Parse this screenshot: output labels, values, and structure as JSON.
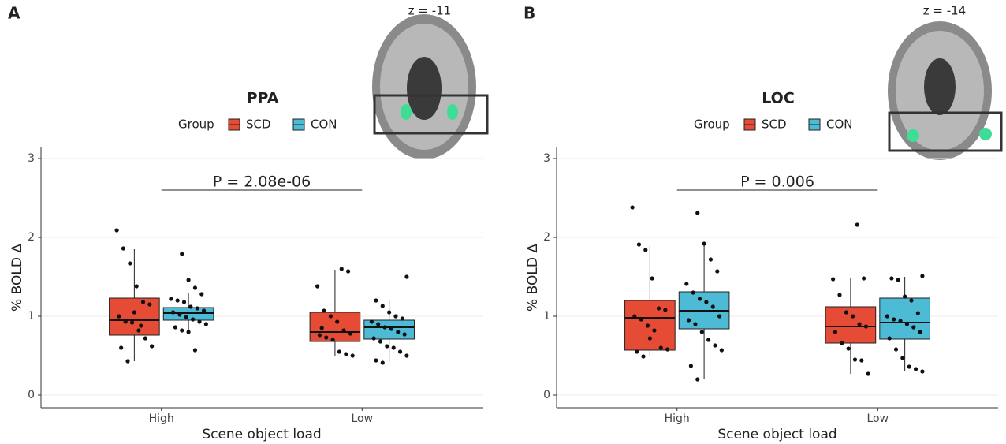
{
  "chart_data": [
    {
      "type": "box",
      "panel_label": "A",
      "title": "PPA",
      "legend_title": "Group",
      "legend_position": "top",
      "xlabel": "Scene object load",
      "ylabel": "% BOLD Δ",
      "slice_label": "z = -11",
      "annotation": "P = 2.08e-06",
      "categories": [
        "High",
        "Low"
      ],
      "ylim": [
        -0.16,
        3.14
      ],
      "yticks": [
        0,
        1,
        2,
        3
      ],
      "grid": true,
      "series": [
        {
          "name": "SCD",
          "color": "#e64b35",
          "boxes": [
            {
              "whislo": 0.43,
              "q1": 0.76,
              "med": 0.95,
              "q3": 1.23,
              "whishi": 1.85
            },
            {
              "whislo": 0.5,
              "q1": 0.68,
              "med": 0.8,
              "q3": 1.05,
              "whishi": 1.59
            }
          ],
          "points": [
            [
              2.09,
              1.86,
              1.67,
              1.38,
              1.18,
              1.15,
              1.0,
              0.93,
              0.92,
              0.82,
              0.72,
              0.62,
              0.6,
              0.43,
              1.05,
              0.88
            ],
            [
              1.6,
              1.57,
              1.38,
              1.07,
              1.0,
              0.93,
              0.82,
              0.78,
              0.76,
              0.73,
              0.7,
              0.55,
              0.52,
              0.5,
              0.85
            ]
          ]
        },
        {
          "name": "CON",
          "color": "#4dbbd5",
          "boxes": [
            {
              "whislo": 0.8,
              "q1": 0.95,
              "med": 1.04,
              "q3": 1.11,
              "whishi": 1.3
            },
            {
              "whislo": 0.42,
              "q1": 0.71,
              "med": 0.86,
              "q3": 0.95,
              "whishi": 1.2
            }
          ],
          "points": [
            [
              1.79,
              1.46,
              1.36,
              1.28,
              1.22,
              1.2,
              1.18,
              1.12,
              1.1,
              1.07,
              1.05,
              1.02,
              0.99,
              0.96,
              0.93,
              0.9,
              0.86,
              0.82,
              0.8,
              0.57
            ],
            [
              1.5,
              1.2,
              1.13,
              1.05,
              1.0,
              0.97,
              0.93,
              0.9,
              0.86,
              0.84,
              0.8,
              0.77,
              0.72,
              0.68,
              0.62,
              0.6,
              0.55,
              0.5,
              0.44,
              0.41
            ]
          ]
        }
      ]
    },
    {
      "type": "box",
      "panel_label": "B",
      "title": "LOC",
      "legend_title": "Group",
      "legend_position": "top",
      "xlabel": "Scene object load",
      "ylabel": "% BOLD Δ",
      "slice_label": "z = -14",
      "annotation": "P = 0.006",
      "categories": [
        "High",
        "Low"
      ],
      "ylim": [
        -0.16,
        3.14
      ],
      "yticks": [
        0,
        1,
        2,
        3
      ],
      "grid": true,
      "series": [
        {
          "name": "SCD",
          "color": "#e64b35",
          "boxes": [
            {
              "whislo": 0.49,
              "q1": 0.57,
              "med": 0.98,
              "q3": 1.2,
              "whishi": 1.89
            },
            {
              "whislo": 0.27,
              "q1": 0.66,
              "med": 0.87,
              "q3": 1.12,
              "whishi": 1.48
            }
          ],
          "points": [
            [
              2.38,
              1.91,
              1.84,
              1.48,
              1.1,
              1.08,
              1.0,
              0.96,
              0.88,
              0.82,
              0.6,
              0.58,
              0.55,
              0.49,
              0.72
            ],
            [
              2.16,
              1.48,
              1.47,
              1.27,
              1.05,
              1.0,
              0.9,
              0.87,
              0.8,
              0.66,
              0.59,
              0.45,
              0.44,
              0.27
            ]
          ]
        },
        {
          "name": "CON",
          "color": "#4dbbd5",
          "boxes": [
            {
              "whislo": 0.2,
              "q1": 0.84,
              "med": 1.07,
              "q3": 1.31,
              "whishi": 1.92
            },
            {
              "whislo": 0.3,
              "q1": 0.71,
              "med": 0.92,
              "q3": 1.23,
              "whishi": 1.5
            }
          ],
          "points": [
            [
              2.31,
              1.92,
              1.72,
              1.57,
              1.41,
              1.3,
              1.22,
              1.18,
              1.12,
              1.0,
              0.95,
              0.9,
              0.8,
              0.7,
              0.63,
              0.57,
              0.37,
              0.2
            ],
            [
              1.51,
              1.48,
              1.46,
              1.25,
              1.2,
              1.04,
              1.0,
              0.96,
              0.94,
              0.9,
              0.86,
              0.8,
              0.72,
              0.58,
              0.47,
              0.36,
              0.33,
              0.3
            ]
          ]
        }
      ]
    }
  ]
}
